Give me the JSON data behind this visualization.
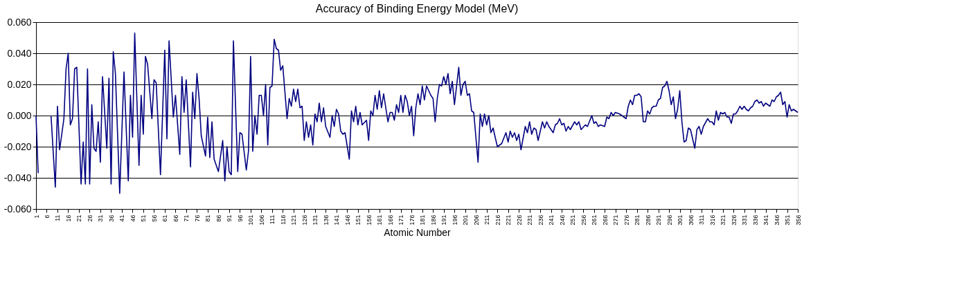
{
  "chart_data": {
    "type": "line",
    "title": "Accuracy of Binding Energy Model (MeV)",
    "xlabel": "Atomic Number",
    "xlim": [
      1,
      356
    ],
    "xticks": [
      1,
      6,
      11,
      16,
      21,
      26,
      31,
      36,
      41,
      46,
      51,
      56,
      61,
      66,
      71,
      76,
      81,
      86,
      91,
      96,
      101,
      106,
      111,
      116,
      121,
      126,
      131,
      136,
      141,
      146,
      151,
      156,
      161,
      166,
      171,
      176,
      181,
      186,
      191,
      196,
      201,
      206,
      211,
      216,
      221,
      226,
      231,
      236,
      241,
      246,
      251,
      256,
      261,
      266,
      271,
      276,
      281,
      286,
      291,
      296,
      301,
      306,
      311,
      316,
      321,
      326,
      331,
      336,
      341,
      346,
      351,
      356
    ],
    "ylim": [
      -0.06,
      0.06
    ],
    "yticks": [
      {
        "value": -0.06,
        "label": "-0.060"
      },
      {
        "value": -0.04,
        "label": "-0.040"
      },
      {
        "value": -0.02,
        "label": "-0.020"
      },
      {
        "value": 0,
        "label": "0.000"
      },
      {
        "value": 0.02,
        "label": "0.020"
      },
      {
        "value": 0.04,
        "label": "0.040"
      },
      {
        "value": 0.06,
        "label": "0.060"
      }
    ],
    "grid": "y",
    "legend": false,
    "marker": "none",
    "line_style": "solid",
    "series": [
      {
        "color": "#000080",
        "x": [
          1,
          2,
          3,
          8,
          10,
          11,
          12,
          14,
          15,
          16,
          17,
          18,
          19,
          20,
          22,
          23,
          24,
          25,
          26,
          27,
          28,
          29,
          30,
          31,
          32,
          34,
          35,
          36,
          37,
          38,
          40,
          42,
          44,
          45,
          46,
          47,
          49,
          50,
          51,
          52,
          53,
          55,
          56,
          57,
          59,
          61,
          62,
          63,
          65,
          66,
          68,
          69,
          70,
          71,
          73,
          74,
          75,
          76,
          77,
          78,
          80,
          81,
          82,
          83,
          84,
          86,
          88,
          89,
          90,
          91,
          92,
          93,
          95,
          96,
          97,
          99,
          100,
          101,
          102,
          103,
          104,
          105,
          106,
          107,
          108,
          109,
          110,
          111,
          112,
          113,
          114,
          115,
          116,
          118,
          119,
          120,
          121,
          122,
          123,
          124,
          125,
          126,
          127,
          128,
          129,
          130,
          131,
          132,
          133,
          134,
          135,
          136,
          138,
          139,
          140,
          141,
          142,
          143,
          144,
          145,
          147,
          148,
          149,
          150,
          151,
          152,
          153,
          155,
          156,
          157,
          158,
          159,
          160,
          161,
          162,
          163,
          165,
          166,
          167,
          168,
          169,
          170,
          171,
          172,
          173,
          174,
          175,
          176,
          177,
          178,
          179,
          180,
          181,
          182,
          183,
          184,
          185,
          186,
          187,
          188,
          189,
          190,
          191,
          192,
          193,
          194,
          195,
          196,
          198,
          199,
          200,
          201,
          202,
          203,
          204,
          205,
          207,
          208,
          209,
          210,
          211,
          212,
          213,
          214,
          216,
          218,
          220,
          221,
          222,
          223,
          224,
          225,
          226,
          227,
          229,
          230,
          231,
          232,
          233,
          234,
          235,
          237,
          238,
          239,
          240,
          242,
          243,
          244,
          245,
          246,
          247,
          248,
          249,
          250,
          252,
          253,
          254,
          255,
          257,
          258,
          260,
          261,
          262,
          263,
          264,
          266,
          267,
          268,
          269,
          270,
          271,
          273,
          274,
          276,
          277,
          278,
          279,
          280,
          281,
          282,
          283,
          284,
          285,
          286,
          287,
          288,
          289,
          290,
          291,
          292,
          293,
          294,
          295,
          296,
          297,
          298,
          299,
          300,
          301,
          302,
          303,
          304,
          305,
          306,
          308,
          309,
          310,
          311,
          312,
          314,
          315,
          316,
          317,
          318,
          319,
          320,
          321,
          322,
          323,
          324,
          325,
          326,
          327,
          328,
          329,
          330,
          331,
          332,
          333,
          334,
          335,
          336,
          337,
          338,
          339,
          340,
          341,
          342,
          343,
          344,
          345,
          346,
          347,
          348,
          349,
          350,
          351,
          352,
          353,
          354,
          355,
          356
        ],
        "values": [
          0,
          -0.037,
          null,
          0,
          -0.046,
          0.006,
          -0.022,
          -0.002,
          0.03,
          0.04,
          -0.006,
          -0.002,
          0.03,
          0.031,
          -0.044,
          -0.017,
          -0.044,
          0.03,
          -0.044,
          0.007,
          -0.021,
          -0.023,
          -0.004,
          -0.03,
          0.025,
          -0.021,
          0.024,
          -0.044,
          0.041,
          0.027,
          -0.05,
          0.028,
          -0.042,
          0.013,
          -0.014,
          0.053,
          -0.032,
          0.013,
          -0.012,
          0.038,
          0.033,
          -0.002,
          0.023,
          0.021,
          -0.038,
          0.042,
          -0.015,
          0.048,
          -0.001,
          0.013,
          -0.025,
          0.025,
          0.002,
          0.023,
          -0.033,
          0.015,
          -0.002,
          0.027,
          0.011,
          -0.013,
          -0.026,
          -0.001,
          -0.027,
          -0.004,
          -0.028,
          -0.036,
          -0.016,
          -0.042,
          -0.02,
          -0.036,
          -0.038,
          0.048,
          -0.036,
          -0.011,
          -0.012,
          -0.035,
          -0.023,
          0.038,
          -0.023,
          0,
          -0.012,
          0.013,
          0.013,
          0,
          0.02,
          -0.019,
          0.018,
          0.019,
          0.049,
          0.043,
          0.042,
          0.029,
          0.032,
          -0.002,
          0.011,
          0.006,
          0.017,
          0.009,
          0.017,
          0.005,
          0.006,
          -0.016,
          -0.004,
          -0.014,
          -0.006,
          -0.019,
          0.001,
          -0.004,
          0.008,
          -0.004,
          0.005,
          -0.007,
          -0.014,
          0,
          -0.007,
          0.004,
          0.001,
          -0.01,
          -0.012,
          -0.011,
          -0.028,
          0.003,
          -0.004,
          0.006,
          -0.006,
          0.002,
          -0.006,
          -0.003,
          -0.016,
          0.003,
          0,
          0.013,
          0.004,
          0.016,
          0.005,
          0.014,
          -0.004,
          0.002,
          0.002,
          -0.003,
          0.007,
          0.002,
          0.013,
          0.002,
          0.013,
          0.009,
          0,
          0.006,
          -0.013,
          0.005,
          0.014,
          0.007,
          0.019,
          0.01,
          0.019,
          0.016,
          0.013,
          0.011,
          -0.004,
          0.011,
          0.02,
          0.019,
          0.025,
          0.02,
          0.027,
          0.014,
          0.022,
          0.007,
          0.031,
          0.013,
          0.02,
          0.022,
          0.013,
          0.014,
          0.003,
          0.002,
          -0.03,
          0.001,
          -0.007,
          0.001,
          -0.006,
          0,
          -0.011,
          -0.008,
          -0.02,
          -0.018,
          -0.011,
          -0.017,
          -0.01,
          -0.014,
          -0.011,
          -0.016,
          -0.012,
          -0.022,
          -0.007,
          -0.011,
          -0.004,
          -0.012,
          -0.008,
          -0.009,
          -0.016,
          -0.004,
          -0.008,
          -0.004,
          -0.007,
          -0.011,
          -0.006,
          -0.005,
          -0.002,
          -0.006,
          -0.005,
          -0.01,
          -0.007,
          -0.009,
          -0.004,
          -0.006,
          -0.004,
          -0.009,
          -0.006,
          -0.007,
          0,
          -0.005,
          -0.004,
          -0.007,
          -0.006,
          -0.007,
          -0.001,
          -0.002,
          0.002,
          0,
          0.002,
          0.001,
          0,
          -0.002,
          0.006,
          0.01,
          0.007,
          0.013,
          0.013,
          0.014,
          0.012,
          -0.004,
          -0.004,
          0.003,
          0.001,
          0.005,
          0.006,
          0.006,
          0.01,
          0.011,
          0.018,
          0.019,
          0.022,
          0.016,
          0.007,
          0.012,
          -0.002,
          0.004,
          0.016,
          -0.004,
          -0.017,
          -0.016,
          -0.008,
          -0.009,
          -0.021,
          -0.009,
          -0.007,
          -0.012,
          -0.007,
          -0.002,
          -0.004,
          -0.004,
          -0.006,
          0.003,
          -0.003,
          0.002,
          0.001,
          0.002,
          -0.001,
          -0.001,
          -0.005,
          0.001,
          0.001,
          0.003,
          0.006,
          0.004,
          0.006,
          0.004,
          0.003,
          0.005,
          0.006,
          0.009,
          0.01,
          0.008,
          0.009,
          0.006,
          0.008,
          0.007,
          0.006,
          0.01,
          0.009,
          0.012,
          0.013,
          0.015,
          0.007,
          0.009,
          -0.001,
          0.007,
          0.003,
          0.004,
          0.003,
          0.002
        ]
      }
    ]
  }
}
